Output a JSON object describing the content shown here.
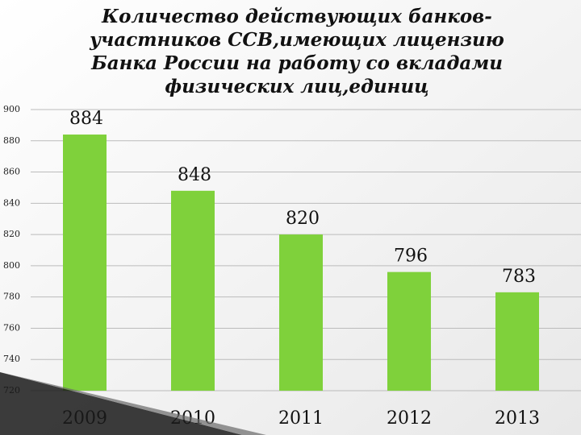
{
  "chart_data": {
    "type": "bar",
    "title": [
      "Количество действующих банков-",
      "участников ССВ,имеющих лицензию",
      "Банка России на работу со вкладами",
      "физических лиц,единиц"
    ],
    "categories": [
      "2009",
      "2010",
      "2011",
      "2012",
      "2013"
    ],
    "values": [
      884,
      848,
      820,
      796,
      783
    ],
    "color": "#7fd13b",
    "ylim": [
      720,
      900
    ],
    "yticks": [
      720,
      740,
      760,
      780,
      800,
      820,
      840,
      860,
      880,
      900
    ],
    "grid": true
  }
}
